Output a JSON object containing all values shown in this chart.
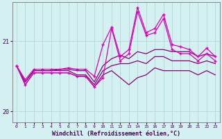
{
  "xlabel": "Windchill (Refroidissement éolien,°C)",
  "bg_color": "#d4f0f0",
  "grid_color": "#b0d8d8",
  "line_color_bright": "#dd00bb",
  "line_color_dark": "#880077",
  "ylim": [
    19.85,
    21.55
  ],
  "xlim": [
    -0.5,
    23.5
  ],
  "yticks": [
    20,
    21
  ],
  "xticks": [
    0,
    1,
    2,
    3,
    4,
    5,
    6,
    7,
    8,
    9,
    10,
    11,
    12,
    13,
    14,
    15,
    16,
    17,
    18,
    19,
    20,
    21,
    22,
    23
  ],
  "series_top": [
    20.65,
    20.45,
    20.6,
    20.6,
    20.6,
    20.6,
    20.62,
    20.6,
    20.6,
    20.5,
    20.95,
    21.2,
    20.78,
    20.88,
    21.48,
    21.12,
    21.18,
    21.38,
    20.95,
    20.92,
    20.88,
    20.78,
    20.9,
    20.78
  ],
  "series_mid1": [
    20.65,
    20.42,
    20.58,
    20.58,
    20.58,
    20.6,
    20.6,
    20.58,
    20.58,
    20.42,
    20.65,
    20.75,
    20.8,
    20.75,
    20.85,
    20.82,
    20.88,
    20.88,
    20.85,
    20.85,
    20.85,
    20.78,
    20.82,
    20.78
  ],
  "series_mid2": [
    20.65,
    20.42,
    20.58,
    20.58,
    20.58,
    20.58,
    20.58,
    20.52,
    20.52,
    20.38,
    20.58,
    20.65,
    20.68,
    20.68,
    20.72,
    20.68,
    20.78,
    20.78,
    20.72,
    20.72,
    20.72,
    20.68,
    20.72,
    20.68
  ],
  "series_bot": [
    20.65,
    20.38,
    20.55,
    20.55,
    20.55,
    20.55,
    20.55,
    20.5,
    20.5,
    20.35,
    20.52,
    20.58,
    20.48,
    20.38,
    20.48,
    20.52,
    20.62,
    20.58,
    20.58,
    20.58,
    20.58,
    20.52,
    20.58,
    20.52
  ],
  "series_volatile": [
    20.65,
    20.38,
    20.55,
    20.55,
    20.55,
    20.55,
    20.55,
    20.5,
    20.5,
    20.35,
    20.48,
    21.18,
    20.72,
    20.82,
    21.42,
    21.08,
    21.12,
    21.32,
    20.88,
    20.82,
    20.82,
    20.72,
    20.82,
    20.72
  ]
}
